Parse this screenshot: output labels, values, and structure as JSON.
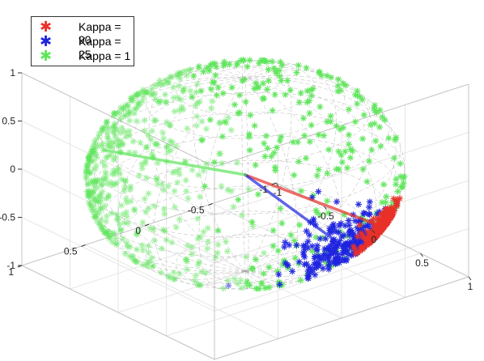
{
  "chart_data": {
    "type": "scatter3d",
    "xlim": [
      -1,
      1
    ],
    "ylim": [
      -1,
      1
    ],
    "zlim": [
      -1,
      1
    ],
    "grid": true,
    "legend_placement": "top-left",
    "x_ticks": [
      -1,
      -0.5,
      0,
      0.5,
      1
    ],
    "y_ticks": [
      -1,
      -0.5,
      0,
      0.5,
      1
    ],
    "z_ticks": [
      -1,
      -0.5,
      0,
      0.5,
      1
    ],
    "x_tick_labels": [
      "-1",
      "-0.5",
      "0",
      "0.5",
      "1"
    ],
    "y_tick_labels": [
      "-1",
      "-0.5",
      "0",
      "0.5",
      "1"
    ],
    "z_tick_labels": [
      "-1",
      "-0.5",
      "0",
      "0.5",
      "1"
    ],
    "unit_sphere_wireframe": true,
    "marker": "*",
    "series": [
      {
        "name": "Kappa = 90",
        "color": "#e8312a",
        "kappa": 90,
        "mean_direction": [
          0.55,
          -0.55,
          -0.45
        ]
      },
      {
        "name": "Kappa = 25",
        "color": "#1f24e0",
        "kappa": 25,
        "mean_direction": [
          0.35,
          -0.55,
          -0.85
        ]
      },
      {
        "name": "Kappa = 1",
        "color": "#5ee65a",
        "kappa": 1,
        "mean_direction": [
          -0.95,
          0.45,
          0.0
        ]
      }
    ]
  },
  "legend": {
    "entries": [
      "Kappa = 90",
      "Kappa = 25",
      "Kappa = 1"
    ],
    "marker_glyph": "✱"
  }
}
